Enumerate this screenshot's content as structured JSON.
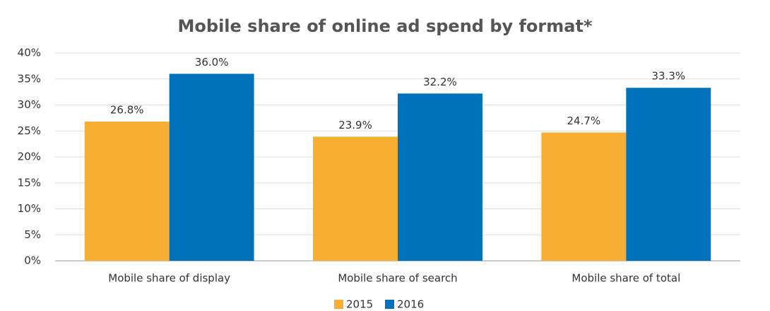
{
  "chart_data": {
    "type": "bar",
    "title": "Mobile share of online ad spend by format*",
    "categories": [
      "Mobile share of display",
      "Mobile share of search",
      "Mobile share of total"
    ],
    "series": [
      {
        "name": "2015",
        "color": "#f7ae33",
        "values": [
          26.8,
          23.9,
          24.7
        ],
        "value_labels": [
          "26.8%",
          "23.9%",
          "24.7%"
        ]
      },
      {
        "name": "2016",
        "color": "#0072bc",
        "values": [
          36.0,
          32.2,
          33.3
        ],
        "value_labels": [
          "36.0%",
          "32.2%",
          "33.3%"
        ]
      }
    ],
    "ylim": [
      0,
      40
    ],
    "yticks": [
      {
        "value": 0,
        "label": "0%"
      },
      {
        "value": 5,
        "label": "5%"
      },
      {
        "value": 10,
        "label": "10%"
      },
      {
        "value": 15,
        "label": "15%"
      },
      {
        "value": 20,
        "label": "20%"
      },
      {
        "value": 25,
        "label": "25%"
      },
      {
        "value": 30,
        "label": "30%"
      },
      {
        "value": 35,
        "label": "35%"
      },
      {
        "value": 40,
        "label": "40%"
      }
    ],
    "grid": true,
    "legend": "bottom"
  }
}
